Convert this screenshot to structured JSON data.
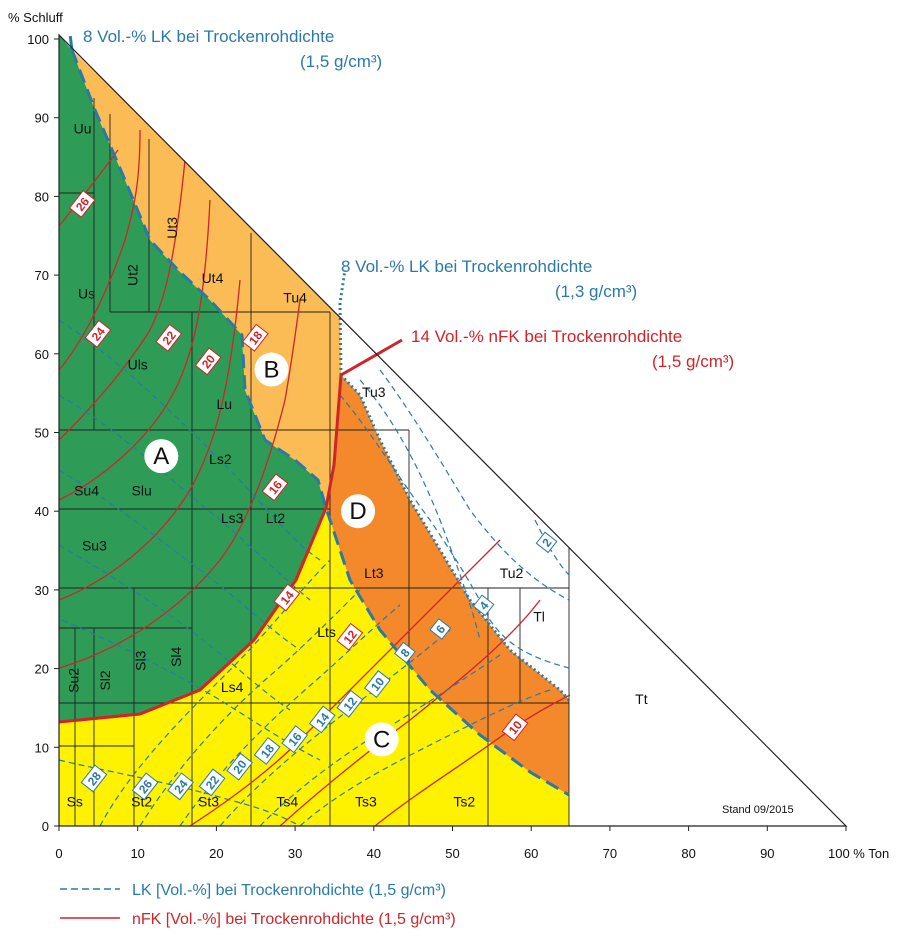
{
  "colors": {
    "zoneA": "#2e9b57",
    "zoneB": "#fcbc55",
    "zoneC": "#fff200",
    "zoneD": "#f3892a",
    "lk": "#2a7aa8",
    "nfk": "#d0242a",
    "grid": "#222222"
  },
  "chart_data": {
    "type": "soil texture triangle",
    "xlabel": "100 % Ton",
    "ylabel": "% Schluff",
    "xlim": [
      0,
      100
    ],
    "ylim": [
      0,
      100
    ],
    "x_ticks": [
      0,
      10,
      20,
      30,
      40,
      50,
      60,
      70,
      80,
      90
    ],
    "y_ticks": [
      0,
      10,
      20,
      30,
      40,
      50,
      60,
      70,
      80,
      90,
      100
    ],
    "stamp": "Stand 09/2015",
    "legend": [
      {
        "style": "dashed",
        "color": "#2a7aa8",
        "label": "LK [Vol.-%] bei Trockenrohdichte (1,5 g/cm³)"
      },
      {
        "style": "solid",
        "color": "#d0242a",
        "label": "nFK [Vol.-%] bei Trockenrohdichte (1,5 g/cm³)"
      }
    ],
    "annotations": [
      {
        "id": "lk15",
        "lines": [
          "8 Vol.-% LK bei Trockenrohdichte",
          "(1,5 g/cm³)"
        ]
      },
      {
        "id": "lk13",
        "lines": [
          "8 Vol.-% LK bei Trockenrohdichte",
          "(1,3 g/cm³)"
        ]
      },
      {
        "id": "nfk15",
        "lines": [
          "14 Vol.-% nFK bei Trockenrohdichte",
          "(1,5 g/cm³)"
        ]
      }
    ],
    "zones": [
      {
        "label": "A",
        "clay": 13,
        "silt": 47
      },
      {
        "label": "B",
        "clay": 27,
        "silt": 58
      },
      {
        "label": "C",
        "clay": 41,
        "silt": 11
      },
      {
        "label": "D",
        "clay": 38,
        "silt": 40
      }
    ],
    "soil_classes": [
      {
        "label": "Uu",
        "clay": 3,
        "silt": 88
      },
      {
        "label": "Ut3",
        "clay": 15,
        "silt": 76,
        "rotate": true
      },
      {
        "label": "Us",
        "clay": 3.5,
        "silt": 67
      },
      {
        "label": "Ut2",
        "clay": 10,
        "silt": 70,
        "rotate": true
      },
      {
        "label": "Ut4",
        "clay": 19.5,
        "silt": 69
      },
      {
        "label": "Tu4",
        "clay": 30,
        "silt": 66.5
      },
      {
        "label": "Uls",
        "clay": 10,
        "silt": 58
      },
      {
        "label": "Lu",
        "clay": 21,
        "silt": 53
      },
      {
        "label": "Tu3",
        "clay": 40,
        "silt": 54.5
      },
      {
        "label": "Ls2",
        "clay": 20.5,
        "silt": 46
      },
      {
        "label": "Su4",
        "clay": 3.5,
        "silt": 42
      },
      {
        "label": "Slu",
        "clay": 10.5,
        "silt": 42
      },
      {
        "label": "Ls3",
        "clay": 22,
        "silt": 38.5
      },
      {
        "label": "Lt2",
        "clay": 27.5,
        "silt": 38.5
      },
      {
        "label": "Su3",
        "clay": 4.5,
        "silt": 35
      },
      {
        "label": "Lt3",
        "clay": 40,
        "silt": 31.5
      },
      {
        "label": "Tu2",
        "clay": 57.5,
        "silt": 31.5
      },
      {
        "label": "Tl",
        "clay": 61,
        "silt": 26
      },
      {
        "label": "Lts",
        "clay": 34,
        "silt": 24
      },
      {
        "label": "Su2",
        "clay": 2.5,
        "silt": 18.5,
        "rotate": true
      },
      {
        "label": "Sl2",
        "clay": 6.5,
        "silt": 18.5,
        "rotate": true
      },
      {
        "label": "Sl3",
        "clay": 11,
        "silt": 21,
        "rotate": true
      },
      {
        "label": "Sl4",
        "clay": 15.5,
        "silt": 21.5,
        "rotate": true
      },
      {
        "label": "Ls4",
        "clay": 22,
        "silt": 17
      },
      {
        "label": "Tt",
        "clay": 74,
        "silt": 15.5
      },
      {
        "label": "Ss",
        "clay": 2,
        "silt": 2.5
      },
      {
        "label": "St2",
        "clay": 10.5,
        "silt": 2.5
      },
      {
        "label": "St3",
        "clay": 19,
        "silt": 2.5
      },
      {
        "label": "Ts4",
        "clay": 29,
        "silt": 2.5
      },
      {
        "label": "Ts3",
        "clay": 39,
        "silt": 2.5
      },
      {
        "label": "Ts2",
        "clay": 51.5,
        "silt": 2.5
      }
    ],
    "nfk_labels": [
      {
        "label": "26",
        "clay": 3,
        "silt": 79
      },
      {
        "label": "24",
        "clay": 5,
        "silt": 62.5
      },
      {
        "label": "22",
        "clay": 14,
        "silt": 62
      },
      {
        "label": "20",
        "clay": 19,
        "silt": 59
      },
      {
        "label": "18",
        "clay": 25,
        "silt": 62
      },
      {
        "label": "16",
        "clay": 27.5,
        "silt": 43
      },
      {
        "label": "14",
        "clay": 29,
        "silt": 29
      },
      {
        "label": "12",
        "clay": 37,
        "silt": 24
      },
      {
        "label": "10",
        "clay": 58,
        "silt": 12.5
      }
    ],
    "lk_labels": [
      {
        "label": "2",
        "clay": 62,
        "silt": 36
      },
      {
        "label": "4",
        "clay": 54,
        "silt": 28
      },
      {
        "label": "6",
        "clay": 48.5,
        "silt": 25
      },
      {
        "label": "8",
        "clay": 44,
        "silt": 22
      },
      {
        "label": "10",
        "clay": 40.5,
        "silt": 18
      },
      {
        "label": "12",
        "clay": 37,
        "silt": 15.5
      },
      {
        "label": "14",
        "clay": 33.5,
        "silt": 13.5
      },
      {
        "label": "16",
        "clay": 30,
        "silt": 11
      },
      {
        "label": "18",
        "clay": 26.5,
        "silt": 9.5
      },
      {
        "label": "20",
        "clay": 23,
        "silt": 7.5
      },
      {
        "label": "22",
        "clay": 19.5,
        "silt": 5.5
      },
      {
        "label": "24",
        "clay": 15.5,
        "silt": 5
      },
      {
        "label": "26",
        "clay": 11,
        "silt": 5
      },
      {
        "label": "28",
        "clay": 4.5,
        "silt": 6
      }
    ]
  }
}
